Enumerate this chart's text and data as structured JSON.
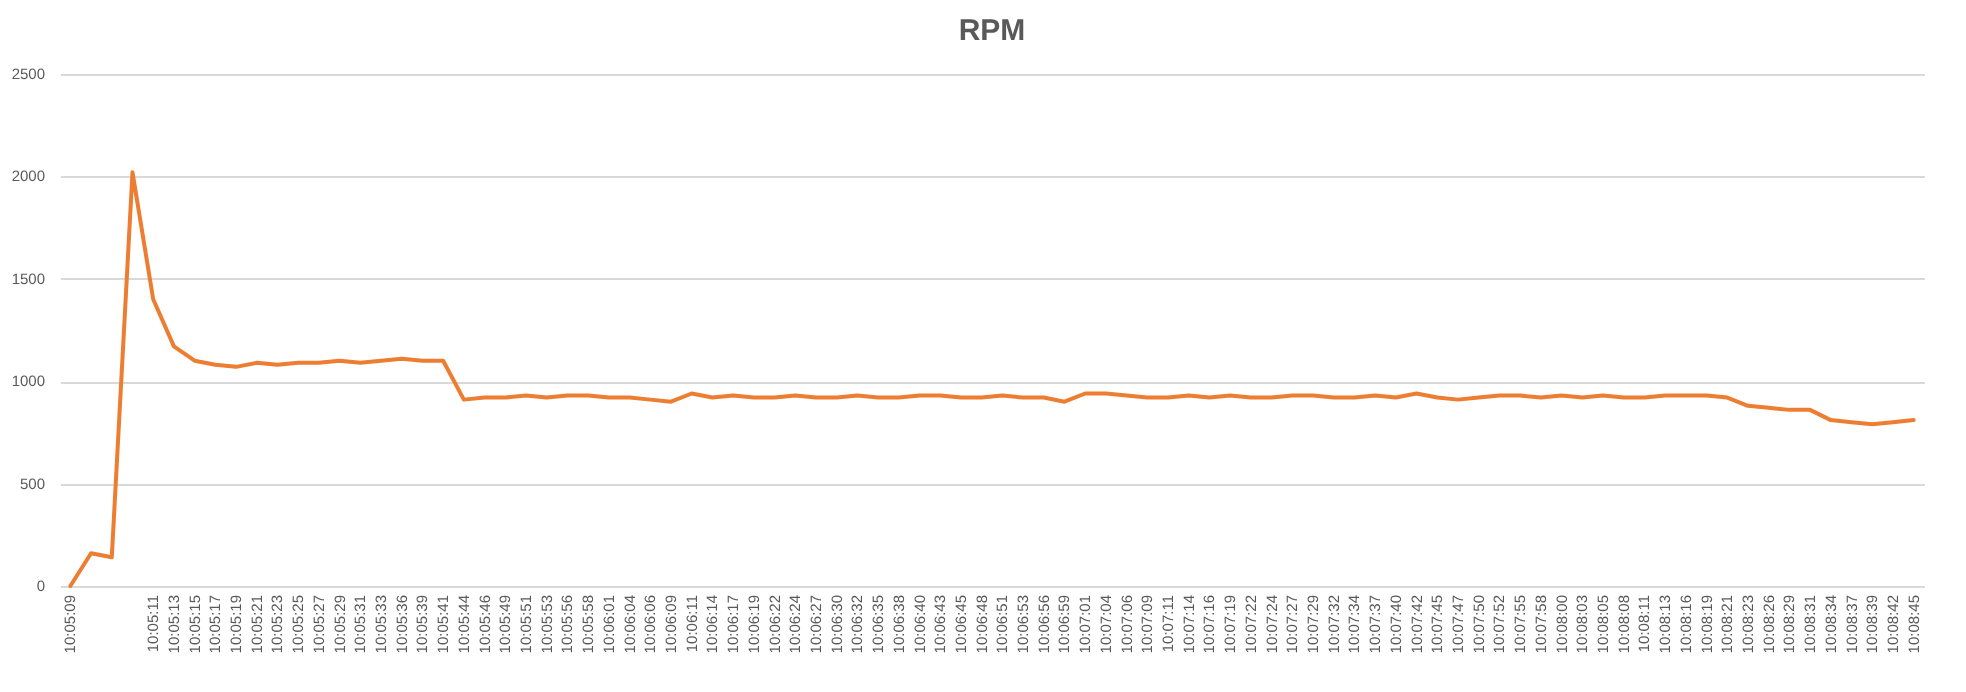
{
  "chart_data": {
    "type": "line",
    "title": "RPM",
    "categories": [
      "10:05:09",
      null,
      null,
      null,
      "10:05:11",
      "10:05:13",
      "10:05:15",
      "10:05:17",
      "10:05:19",
      "10:05:21",
      "10:05:23",
      "10:05:25",
      "10:05:27",
      "10:05:29",
      "10:05:31",
      "10:05:33",
      "10:05:36",
      "10:05:39",
      "10:05:41",
      "10:05:44",
      "10:05:46",
      "10:05:49",
      "10:05:51",
      "10:05:53",
      "10:05:56",
      "10:05:58",
      "10:06:01",
      "10:06:04",
      "10:06:06",
      "10:06:09",
      "10:06:11",
      "10:06:14",
      "10:06:17",
      "10:06:19",
      "10:06:22",
      "10:06:24",
      "10:06:27",
      "10:06:30",
      "10:06:32",
      "10:06:35",
      "10:06:38",
      "10:06:40",
      "10:06:43",
      "10:06:45",
      "10:06:48",
      "10:06:51",
      "10:06:53",
      "10:06:56",
      "10:06:59",
      "10:07:01",
      "10:07:04",
      "10:07:06",
      "10:07:09",
      "10:07:11",
      "10:07:14",
      "10:07:16",
      "10:07:19",
      "10:07:22",
      "10:07:24",
      "10:07:27",
      "10:07:29",
      "10:07:32",
      "10:07:34",
      "10:07:37",
      "10:07:40",
      "10:07:42",
      "10:07:45",
      "10:07:47",
      "10:07:50",
      "10:07:52",
      "10:07:55",
      "10:07:58",
      "10:08:00",
      "10:08:03",
      "10:08:05",
      "10:08:08",
      "10:08:11",
      "10:08:13",
      "10:08:16",
      "10:08:19",
      "10:08:21",
      "10:08:23",
      "10:08:26",
      "10:08:29",
      "10:08:31",
      "10:08:34",
      "10:08:37",
      "10:08:39",
      "10:08:42",
      "10:08:45"
    ],
    "series": [
      {
        "color": "#ed7d31",
        "values": [
          0,
          160,
          140,
          2020,
          1400,
          1170,
          1100,
          1080,
          1070,
          1090,
          1080,
          1090,
          1090,
          1100,
          1090,
          1100,
          1110,
          1100,
          1100,
          910,
          920,
          920,
          930,
          920,
          930,
          930,
          920,
          920,
          910,
          900,
          940,
          920,
          930,
          920,
          920,
          930,
          920,
          920,
          930,
          920,
          920,
          930,
          930,
          920,
          920,
          930,
          920,
          920,
          900,
          940,
          940,
          930,
          920,
          920,
          930,
          920,
          930,
          920,
          920,
          930,
          930,
          920,
          920,
          930,
          920,
          940,
          920,
          910,
          920,
          930,
          930,
          920,
          930,
          920,
          930,
          920,
          920,
          930,
          930,
          930,
          920,
          880,
          870,
          860,
          860,
          810,
          800,
          790,
          800,
          810
        ]
      }
    ],
    "ylim": [
      0,
      2500
    ],
    "yticks": [
      0,
      500,
      1000,
      1500,
      2000,
      2500
    ],
    "grid": "y",
    "marker": "none",
    "line_style": "solid"
  }
}
